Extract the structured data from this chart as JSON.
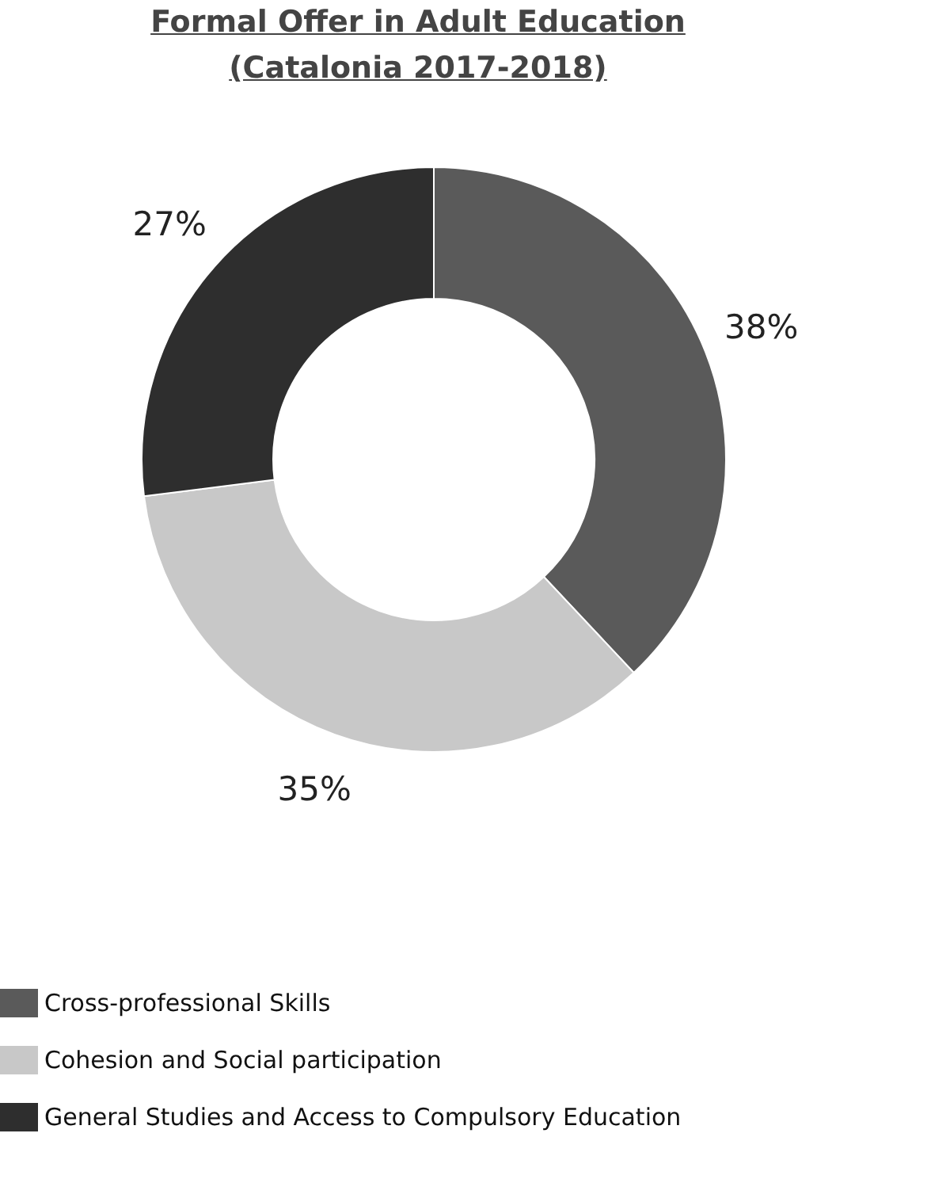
{
  "chart_data": {
    "type": "donut",
    "title": "Formal Offer in Adult Education\n(Catalonia 2017-2018)",
    "categories": [
      "Cross-professional Skills",
      "Cohesion and Social participation",
      "General Studies and Access to Compulsory Education"
    ],
    "values": [
      38,
      35,
      27
    ],
    "value_labels": [
      "38%",
      "35%",
      "27%"
    ],
    "colors": [
      "#5a5a5a",
      "#c8c8c8",
      "#2e2e2e"
    ],
    "legend": "bottom left"
  }
}
